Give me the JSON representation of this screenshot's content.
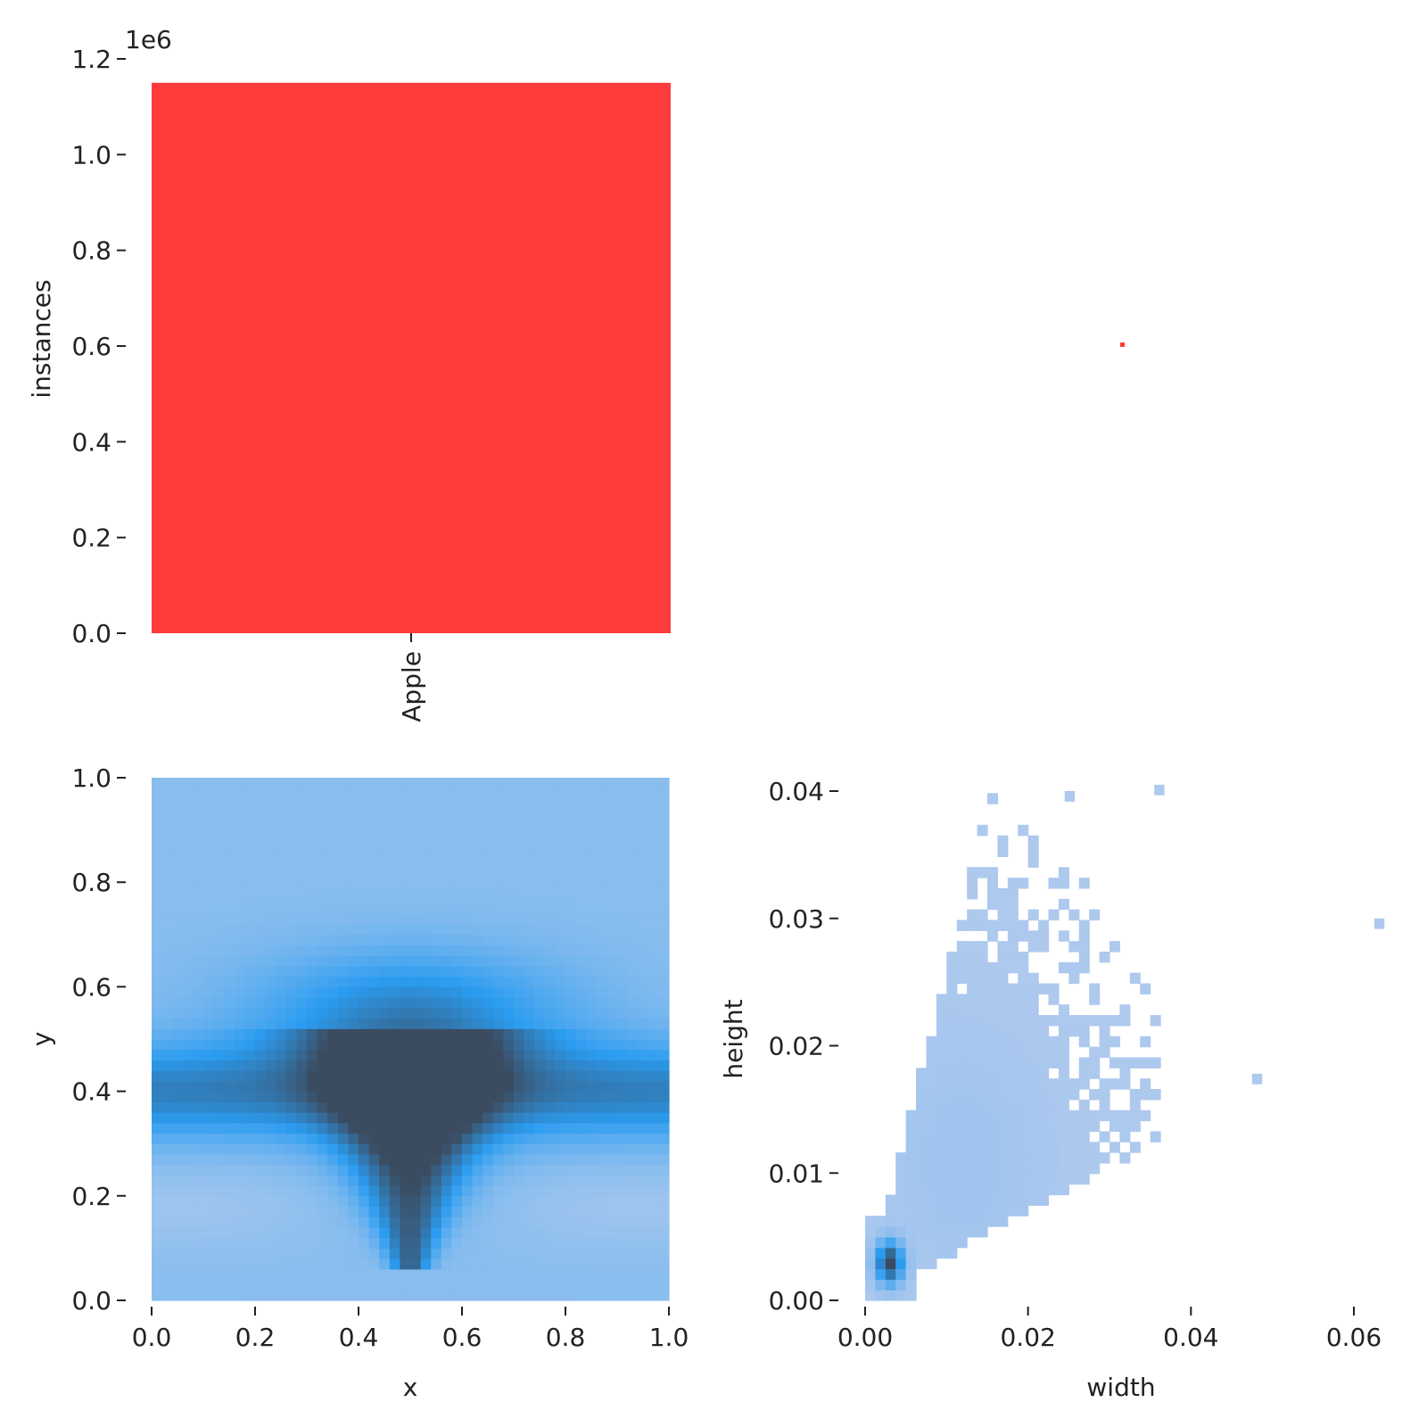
{
  "figure_title": "",
  "chart_data": [
    {
      "panel": "top-left",
      "type": "bar",
      "categories": [
        "Apple"
      ],
      "values": [
        1150000
      ],
      "ylabel": "instances",
      "xlabel": "",
      "ylim": [
        0,
        1200000
      ],
      "yticks": [
        "0.0",
        "0.2",
        "0.4",
        "0.6",
        "0.8",
        "1.0",
        "1.2"
      ],
      "offset_text": "1e6",
      "bar_color": "#ff3b3b",
      "grid": false
    },
    {
      "panel": "top-right",
      "type": "scatter",
      "points": [
        {
          "x": 0.5,
          "y": 0.5
        }
      ],
      "color": "#ff3b3b",
      "axes_visible": false
    },
    {
      "panel": "bottom-left",
      "type": "heatmap",
      "xlabel": "x",
      "ylabel": "y",
      "xlim": [
        0,
        1
      ],
      "ylim": [
        0,
        1
      ],
      "xticks": [
        "0.0",
        "0.2",
        "0.4",
        "0.6",
        "0.8",
        "1.0"
      ],
      "yticks": [
        "0.0",
        "0.2",
        "0.4",
        "0.6",
        "0.8",
        "1.0"
      ],
      "bins": 50,
      "density_description": "heart/V-shaped concentration centered at x≈0.5, y≈0.3–0.5 with a horizontal band near y≈0.4",
      "colormap": [
        "#a8c8ee",
        "#2b9cf0",
        "#3b4c61"
      ],
      "grid": false
    },
    {
      "panel": "bottom-right",
      "type": "heatmap",
      "xlabel": "width",
      "ylabel": "height",
      "xlim": [
        0,
        0.065
      ],
      "ylim": [
        0,
        0.042
      ],
      "xticks": [
        "0.00",
        "0.02",
        "0.04",
        "0.06"
      ],
      "yticks": [
        "0.00",
        "0.01",
        "0.02",
        "0.03",
        "0.04"
      ],
      "hot_spot": {
        "width": 0.003,
        "height": 0.003
      },
      "outliers": [
        {
          "width": 0.0625,
          "height": 0.03
        },
        {
          "width": 0.0475,
          "height": 0.0178
        },
        {
          "width": 0.0355,
          "height": 0.0405
        },
        {
          "width": 0.0245,
          "height": 0.04
        }
      ],
      "colormap": [
        "#aec9ee",
        "#2b9cf0",
        "#3b4c61"
      ],
      "grid": false
    }
  ]
}
